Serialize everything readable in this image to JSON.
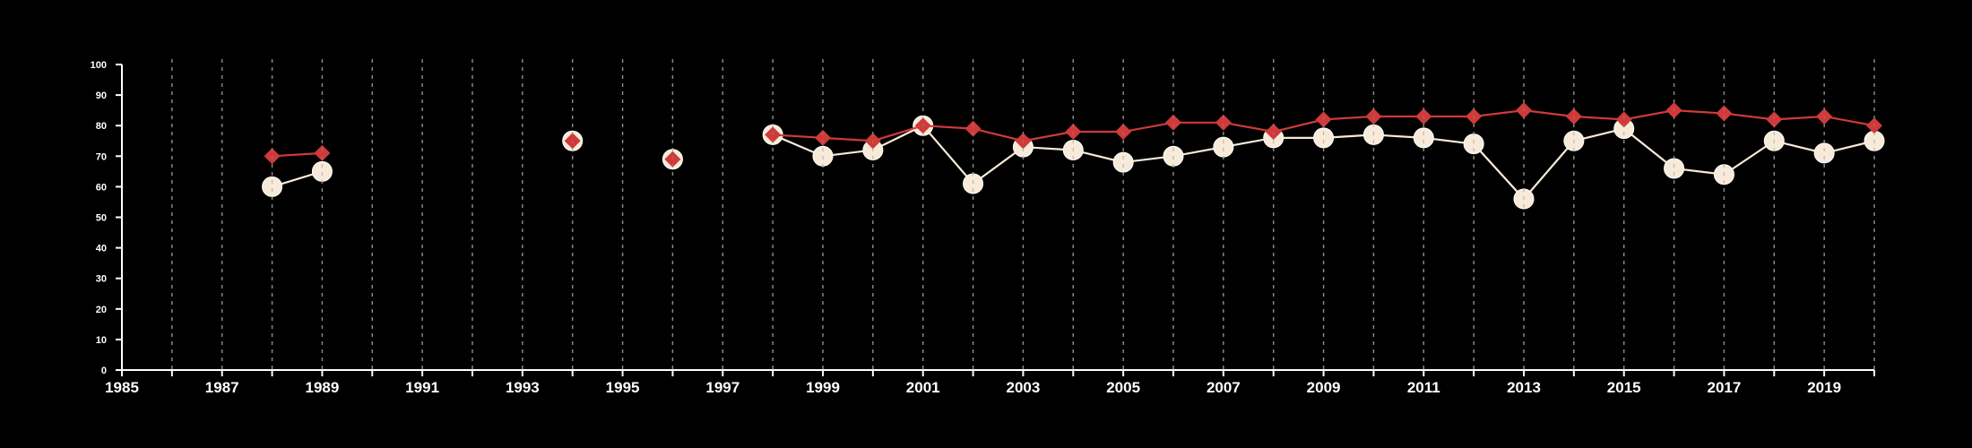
{
  "chart_data": {
    "type": "line",
    "title": "",
    "xlabel": "",
    "ylabel": "",
    "xlim": [
      1985,
      2020
    ],
    "ylim": [
      0,
      100
    ],
    "x_ticks_labeled": [
      1985,
      1987,
      1989,
      1991,
      1993,
      1995,
      1997,
      1999,
      2001,
      2003,
      2005,
      2007,
      2009,
      2011,
      2013,
      2015,
      2017,
      2019
    ],
    "y_ticks": [
      0,
      10,
      20,
      30,
      40,
      50,
      60,
      70,
      80,
      90,
      100
    ],
    "vertical_gridlines": "dashed, every year 1986-2020",
    "legend": "none",
    "x": [
      1988,
      1989,
      1990,
      1991,
      1992,
      1993,
      1994,
      1995,
      1996,
      1997,
      1998,
      1999,
      2000,
      2001,
      2002,
      2003,
      2004,
      2005,
      2006,
      2007,
      2008,
      2009,
      2010,
      2011,
      2012,
      2013,
      2014,
      2015,
      2016,
      2017,
      2018,
      2019,
      2020
    ],
    "series": [
      {
        "marker": "diamond",
        "color": "#d03a3a",
        "values": [
          70,
          71,
          null,
          null,
          null,
          null,
          75,
          null,
          69,
          null,
          77,
          76,
          75,
          80,
          79,
          75,
          78,
          78,
          81,
          81,
          78,
          82,
          83,
          83,
          83,
          85,
          83,
          82,
          85,
          84,
          82,
          83,
          80
        ]
      },
      {
        "marker": "circle",
        "color": "#f7ead8",
        "values": [
          60,
          65,
          null,
          null,
          null,
          null,
          75,
          null,
          69,
          null,
          77,
          70,
          72,
          80,
          61,
          73,
          72,
          68,
          70,
          73,
          76,
          76,
          77,
          76,
          74,
          56,
          75,
          79,
          66,
          64,
          75,
          71,
          75
        ]
      }
    ]
  }
}
